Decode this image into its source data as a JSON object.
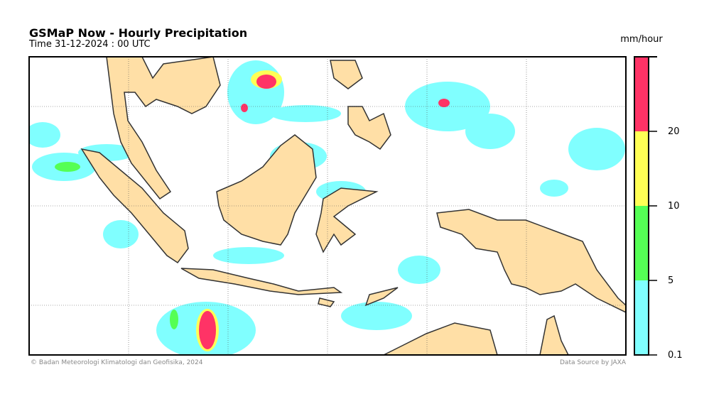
{
  "header": {
    "title": "GSMaP Now - Hourly Precipitation",
    "subtitle": "Time  31-12-2024 : 00 UTC"
  },
  "colorbar": {
    "unit": "mm/hour",
    "levels": [
      0.1,
      5,
      10,
      20
    ],
    "colors": [
      "#80ffff",
      "#55ff55",
      "#ffff55",
      "#ff3366"
    ]
  },
  "footer": {
    "credit": "© Badan Meteorologi Klimatologi dan Geofisika, 2024",
    "source": "Data Source by JAXA"
  }
}
